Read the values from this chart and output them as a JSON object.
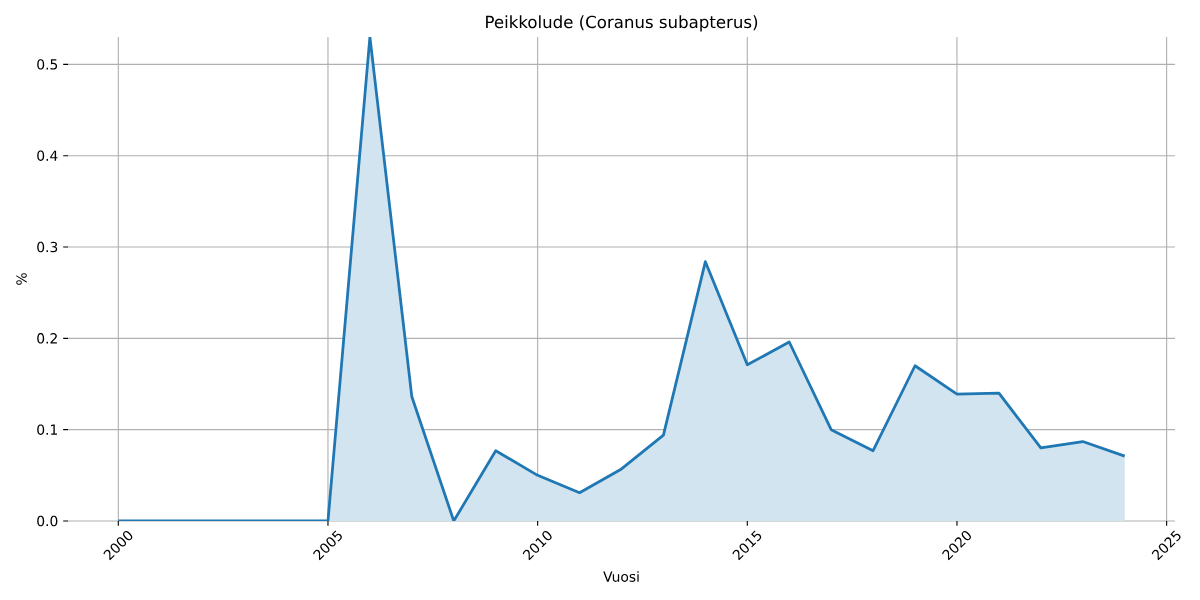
{
  "chart_data": {
    "type": "area",
    "title": "Peikkolude (Coranus subapterus)",
    "xlabel": "Vuosi",
    "ylabel": "%",
    "x": [
      2000,
      2001,
      2002,
      2003,
      2004,
      2005,
      2006,
      2007,
      2008,
      2009,
      2010,
      2011,
      2012,
      2013,
      2014,
      2015,
      2016,
      2017,
      2018,
      2019,
      2020,
      2021,
      2022,
      2023,
      2024
    ],
    "series": [
      {
        "color": "#1f77b4",
        "values": [
          0,
          0,
          0,
          0,
          0,
          0,
          0.53,
          0.136,
          0,
          0.077,
          0.05,
          0.031,
          0.057,
          0.094,
          0.284,
          0.171,
          0.196,
          0.1,
          0.077,
          0.17,
          0.139,
          0.14,
          0.08,
          0.087,
          0.071
        ]
      }
    ],
    "xlim": [
      1998.8,
      2025.2
    ],
    "ylim": [
      0,
      0.53
    ],
    "xticks": [
      2000,
      2005,
      2010,
      2015,
      2020,
      2025
    ],
    "yticks": [
      {
        "value": 0,
        "label": "0.0"
      },
      0.1,
      0.2,
      0.3,
      0.4,
      0.5
    ],
    "grid": true
  }
}
